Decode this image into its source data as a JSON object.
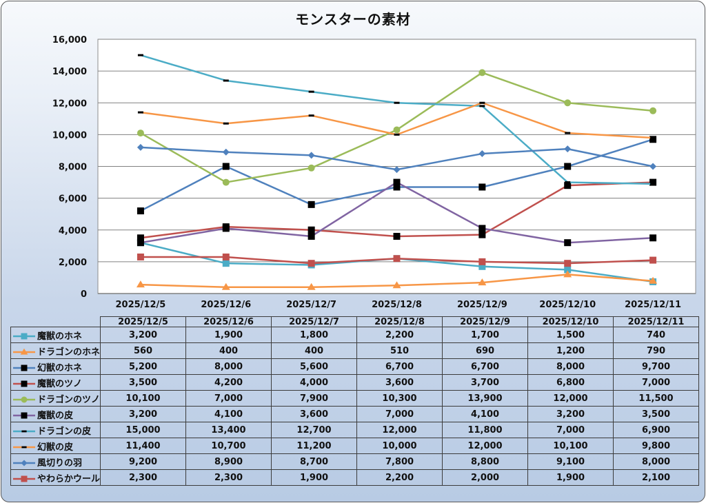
{
  "chart_data": {
    "type": "line",
    "title": "モンスターの素材",
    "xlabel": "",
    "ylabel": "",
    "ylim": [
      0,
      16000
    ],
    "yticks": [
      0,
      2000,
      4000,
      6000,
      8000,
      10000,
      12000,
      14000,
      16000
    ],
    "ytick_labels": [
      "0",
      "2,000",
      "4,000",
      "6,000",
      "8,000",
      "10,000",
      "12,000",
      "14,000",
      "16,000"
    ],
    "grid": true,
    "legend": "data-table-below",
    "categories": [
      "2025/12/5",
      "2025/12/6",
      "2025/12/7",
      "2025/12/8",
      "2025/12/9",
      "2025/12/10",
      "2025/12/11"
    ],
    "series": [
      {
        "name": "魔獣のホネ",
        "color": "#4bacc6",
        "marker": "square",
        "marker_color": "#4bacc6",
        "values": [
          3200,
          1900,
          1800,
          2200,
          1700,
          1500,
          740
        ],
        "labels": [
          "3,200",
          "1,900",
          "1,800",
          "2,200",
          "1,700",
          "1,500",
          "740"
        ]
      },
      {
        "name": "ドラゴンのホネ",
        "color": "#f79646",
        "marker": "triangle",
        "marker_color": "#f79646",
        "values": [
          560,
          400,
          400,
          510,
          690,
          1200,
          790
        ],
        "labels": [
          "560",
          "400",
          "400",
          "510",
          "690",
          "1,200",
          "790"
        ]
      },
      {
        "name": "幻獣のホネ",
        "color": "#4f81bd",
        "marker": "square",
        "marker_color": "#000000",
        "values": [
          5200,
          8000,
          5600,
          6700,
          6700,
          8000,
          9700
        ],
        "labels": [
          "5,200",
          "8,000",
          "5,600",
          "6,700",
          "6,700",
          "8,000",
          "9,700"
        ]
      },
      {
        "name": "魔獣のツノ",
        "color": "#c0504d",
        "marker": "square",
        "marker_color": "#000000",
        "values": [
          3500,
          4200,
          4000,
          3600,
          3700,
          6800,
          7000
        ],
        "labels": [
          "3,500",
          "4,200",
          "4,000",
          "3,600",
          "3,700",
          "6,800",
          "7,000"
        ]
      },
      {
        "name": "ドラゴンのツノ",
        "color": "#9bbb59",
        "marker": "circle",
        "marker_color": "#9bbb59",
        "values": [
          10100,
          7000,
          7900,
          10300,
          13900,
          12000,
          11500
        ],
        "labels": [
          "10,100",
          "7,000",
          "7,900",
          "10,300",
          "13,900",
          "12,000",
          "11,500"
        ]
      },
      {
        "name": "魔獣の皮",
        "color": "#8064a2",
        "marker": "square",
        "marker_color": "#000000",
        "values": [
          3200,
          4100,
          3600,
          7000,
          4100,
          3200,
          3500
        ],
        "labels": [
          "3,200",
          "4,100",
          "3,600",
          "7,000",
          "4,100",
          "3,200",
          "3,500"
        ]
      },
      {
        "name": "ドラゴンの皮",
        "color": "#4bacc6",
        "marker": "dash",
        "marker_color": "#000000",
        "values": [
          15000,
          13400,
          12700,
          12000,
          11800,
          7000,
          6900
        ],
        "labels": [
          "15,000",
          "13,400",
          "12,700",
          "12,000",
          "11,800",
          "7,000",
          "6,900"
        ]
      },
      {
        "name": "幻獣の皮",
        "color": "#f79646",
        "marker": "dash",
        "marker_color": "#000000",
        "values": [
          11400,
          10700,
          11200,
          10000,
          12000,
          10100,
          9800
        ],
        "labels": [
          "11,400",
          "10,700",
          "11,200",
          "10,000",
          "12,000",
          "10,100",
          "9,800"
        ]
      },
      {
        "name": "風切りの羽",
        "color": "#4f81bd",
        "marker": "diamond",
        "marker_color": "#4f81bd",
        "values": [
          9200,
          8900,
          8700,
          7800,
          8800,
          9100,
          8000
        ],
        "labels": [
          "9,200",
          "8,900",
          "8,700",
          "7,800",
          "8,800",
          "9,100",
          "8,000"
        ]
      },
      {
        "name": "やわらかウール",
        "color": "#c0504d",
        "marker": "square",
        "marker_color": "#c0504d",
        "values": [
          2300,
          2300,
          1900,
          2200,
          2000,
          1900,
          2100
        ],
        "labels": [
          "2,300",
          "2,300",
          "1,900",
          "2,200",
          "2,000",
          "1,900",
          "2,100"
        ]
      }
    ]
  }
}
